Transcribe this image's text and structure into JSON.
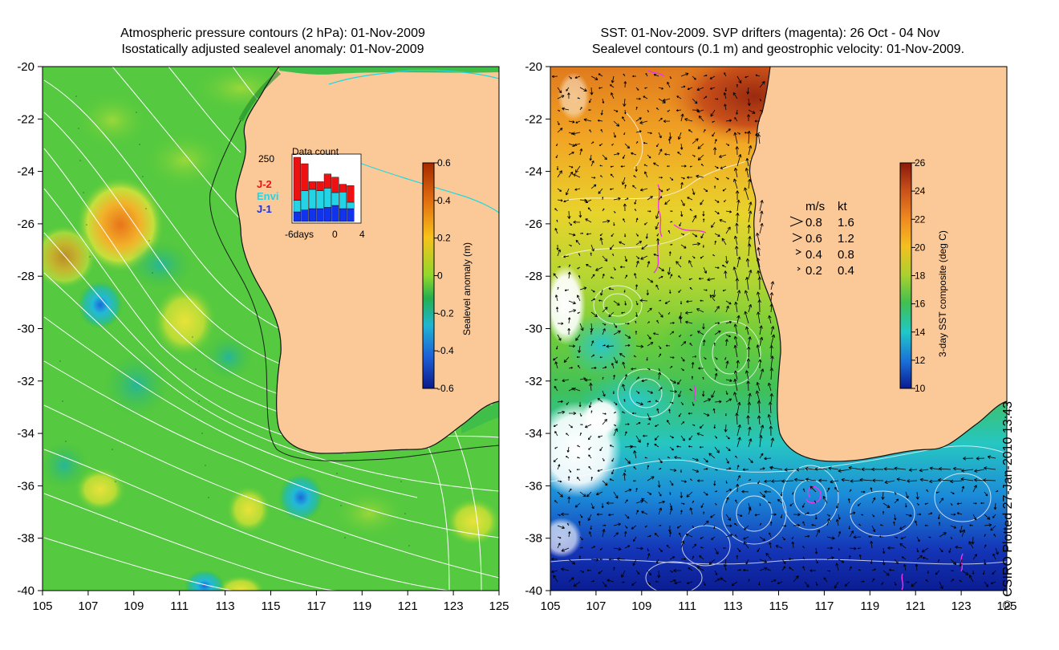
{
  "left_panel": {
    "title_line1": "Atmospheric pressure contours (2 hPa): 01-Nov-2009",
    "title_line2": "Isostatically adjusted sealevel anomaly: 01-Nov-2009",
    "x_ticks": [
      "105",
      "107",
      "109",
      "111",
      "113",
      "115",
      "117",
      "119",
      "121",
      "123",
      "125"
    ],
    "y_ticks": [
      "-20",
      "-22",
      "-24",
      "-26",
      "-28",
      "-30",
      "-32",
      "-34",
      "-36",
      "-38",
      "-40"
    ],
    "colorbar": {
      "label": "Sealevel anomaly (m)",
      "ticks": [
        "0.6",
        "0.4",
        "0.2",
        "0",
        "-0.2",
        "-0.4",
        "-0.6"
      ],
      "colors": [
        "#a52a00",
        "#e06a10",
        "#f7c21a",
        "#8fd82c",
        "#22b04e",
        "#1fb5d3",
        "#1c5fd8",
        "#0a1a8a"
      ]
    },
    "inset": {
      "title": "Data count",
      "max_label": "250",
      "legend": [
        {
          "name": "J-2",
          "color": "#ee1111"
        },
        {
          "name": "Envi",
          "color": "#22d4e6"
        },
        {
          "name": "J-1",
          "color": "#1133ee"
        }
      ],
      "x_labels": [
        "-6days",
        "0",
        "4"
      ],
      "bars": [
        {
          "j1": 0.15,
          "envi": 0.18,
          "j2": 0.67
        },
        {
          "j1": 0.18,
          "envi": 0.3,
          "j2": 0.42
        },
        {
          "j1": 0.2,
          "envi": 0.3,
          "j2": 0.12
        },
        {
          "j1": 0.2,
          "envi": 0.28,
          "j2": 0.14
        },
        {
          "j1": 0.22,
          "envi": 0.3,
          "j2": 0.22
        },
        {
          "j1": 0.25,
          "envi": 0.2,
          "j2": 0.24
        },
        {
          "j1": 0.2,
          "envi": 0.26,
          "j2": 0.12
        },
        {
          "j1": 0.2,
          "envi": 0.1,
          "j2": 0.26
        }
      ]
    }
  },
  "right_panel": {
    "title_line1": "SST: 01-Nov-2009. SVP drifters (magenta): 26 Oct - 04 Nov",
    "title_line2": "Sealevel contours (0.1 m) and geostrophic velocity: 01-Nov-2009.",
    "x_ticks": [
      "105",
      "107",
      "109",
      "111",
      "113",
      "115",
      "117",
      "119",
      "121",
      "123",
      "125"
    ],
    "y_ticks": [
      "-20",
      "-22",
      "-24",
      "-26",
      "-28",
      "-30",
      "-32",
      "-34",
      "-36",
      "-38",
      "-40"
    ],
    "colorbar": {
      "label": "3-day SST composite (deg C)",
      "ticks": [
        "26",
        "24",
        "22",
        "20",
        "18",
        "16",
        "14",
        "12",
        "10"
      ],
      "colors": [
        "#8a1a0a",
        "#c8501a",
        "#f08a20",
        "#f4c020",
        "#a8d030",
        "#40c050",
        "#20c8c8",
        "#1a70d8",
        "#0a1a90"
      ]
    },
    "velocity_legend": {
      "header_ms": "m/s",
      "header_kt": "kt",
      "rows": [
        {
          "ms": "0.8",
          "kt": "1.6"
        },
        {
          "ms": "0.6",
          "kt": "1.2"
        },
        {
          "ms": "0.4",
          "kt": "0.8"
        },
        {
          "ms": "0.2",
          "kt": "0.4"
        }
      ]
    }
  },
  "credit": "© CSIRO Plotted 27-Jan-2010 13:43",
  "colors": {
    "land": "#fbc998",
    "ocean_green": "#3fbf4a",
    "coast_line": "#111111",
    "contour": "#ffffff",
    "cyan_line": "#20d8e0",
    "drifter": "#ee33ee"
  }
}
